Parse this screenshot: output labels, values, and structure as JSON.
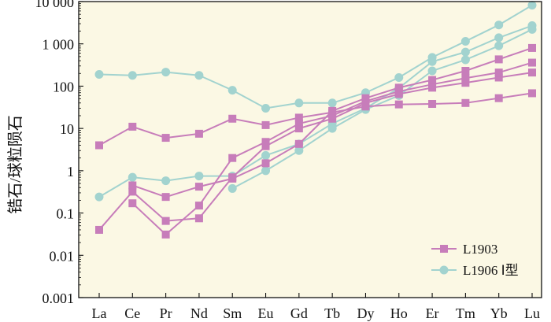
{
  "chart_data": {
    "type": "line",
    "ylabel": "锆石/球粒陨石",
    "yscale": "log",
    "ylim": [
      0.001,
      10000
    ],
    "yticks": [
      {
        "value": 0.001,
        "label": "0.001"
      },
      {
        "value": 0.01,
        "label": "0.01"
      },
      {
        "value": 0.1,
        "label": "0.1"
      },
      {
        "value": 1,
        "label": "1"
      },
      {
        "value": 10,
        "label": "10"
      },
      {
        "value": 100,
        "label": "100"
      },
      {
        "value": 1000,
        "label": "1 000"
      },
      {
        "value": 10000,
        "label": "10 000"
      }
    ],
    "categories": [
      "La",
      "Ce",
      "Pr",
      "Nd",
      "Sm",
      "Eu",
      "Gd",
      "Tb",
      "Dy",
      "Ho",
      "Er",
      "Tm",
      "Yb",
      "Lu"
    ],
    "grid": false,
    "legend_position": "bottom-right",
    "series": [
      {
        "name": "L1903",
        "group": "L1903",
        "marker": "square",
        "color": "#c77dba",
        "values": [
          4,
          11,
          6,
          7.5,
          17,
          12,
          18,
          24,
          33,
          37,
          38,
          40,
          52,
          68
        ]
      },
      {
        "name": "",
        "group": "L1903",
        "marker": "square",
        "color": "#c77dba",
        "values": [
          0.04,
          0.32,
          0.065,
          0.075,
          0.7,
          3.8,
          10,
          17,
          40,
          65,
          92,
          120,
          160,
          210
        ]
      },
      {
        "name": "",
        "group": "L1903",
        "marker": "square",
        "color": "#c77dba",
        "values": [
          null,
          0.17,
          0.031,
          0.15,
          2,
          4.8,
          13,
          20,
          44,
          75,
          110,
          155,
          210,
          360
        ]
      },
      {
        "name": "",
        "group": "L1903",
        "marker": "square",
        "color": "#c77dba",
        "values": [
          null,
          0.45,
          0.24,
          0.42,
          0.65,
          1.5,
          4.3,
          26,
          52,
          92,
          140,
          230,
          430,
          800
        ]
      },
      {
        "name": "L1906 Ⅰ型",
        "group": "L1906",
        "marker": "circle",
        "color": "#a2d3cf",
        "values": [
          190,
          180,
          215,
          180,
          80,
          30,
          40,
          40,
          70,
          160,
          480,
          1150,
          2800,
          8200
        ]
      },
      {
        "name": "",
        "group": "L1906",
        "marker": "circle",
        "color": "#a2d3cf",
        "values": [
          0.24,
          0.7,
          0.58,
          0.75,
          0.75,
          2.3,
          4.3,
          13,
          30,
          90,
          380,
          640,
          1400,
          2700
        ]
      },
      {
        "name": "",
        "group": "L1906",
        "marker": "circle",
        "color": "#a2d3cf",
        "values": [
          null,
          null,
          null,
          null,
          0.38,
          1,
          3,
          10,
          28,
          60,
          230,
          420,
          900,
          2200
        ]
      }
    ],
    "legend": [
      {
        "label": "L1903",
        "marker": "square",
        "color": "#c77dba"
      },
      {
        "label": "L1906 Ⅰ型",
        "marker": "circle",
        "color": "#a2d3cf"
      }
    ]
  },
  "colors": {
    "plot_background": "#fbf8e4",
    "axis": "#111111",
    "l1903": "#c77dba",
    "l1906": "#a2d3cf"
  }
}
